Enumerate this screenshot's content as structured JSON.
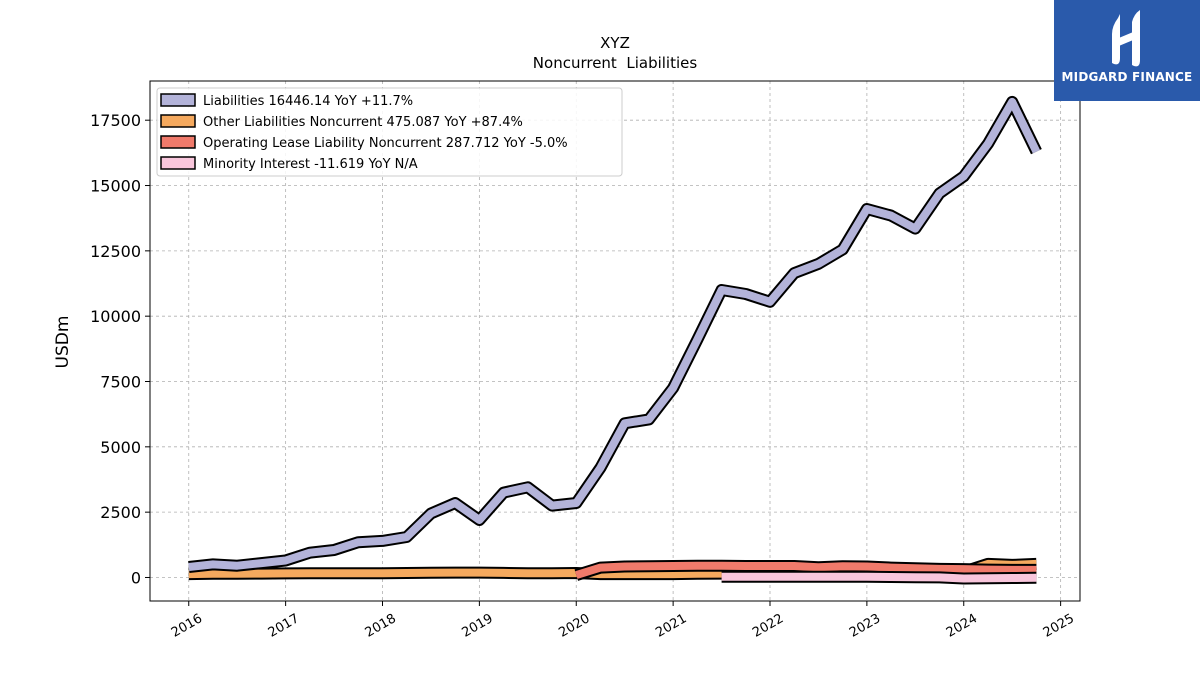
{
  "brand": {
    "name": "MIDGARD FINANCE",
    "color": "#2a5aab"
  },
  "chart_data": {
    "type": "area",
    "title": "XYZ",
    "subtitle": "Noncurrent  Liabilities",
    "ylabel": "USDm",
    "xlabel": "",
    "xlim": [
      2015.6,
      2025.2
    ],
    "ylim": [
      -900,
      19000
    ],
    "yticks": [
      0,
      2500,
      5000,
      7500,
      10000,
      12500,
      15000,
      17500
    ],
    "xticks": [
      "2016",
      "2017",
      "2018",
      "2019",
      "2020",
      "2021",
      "2022",
      "2023",
      "2024",
      "2025"
    ],
    "grid": true,
    "legend_position": "top-left",
    "x": [
      2016.0,
      2016.25,
      2016.5,
      2016.75,
      2017.0,
      2017.25,
      2017.5,
      2017.75,
      2018.0,
      2018.25,
      2018.5,
      2018.75,
      2019.0,
      2019.25,
      2019.5,
      2019.75,
      2020.0,
      2020.25,
      2020.5,
      2020.75,
      2021.0,
      2021.25,
      2021.5,
      2021.75,
      2022.0,
      2022.25,
      2022.5,
      2022.75,
      2023.0,
      2023.25,
      2023.5,
      2023.75,
      2024.0,
      2024.25,
      2024.5,
      2024.75
    ],
    "series": [
      {
        "name": "Liabilities",
        "legend": "Liabilities  16446.14 YoY +11.7%",
        "color": "#b3b3d9",
        "values": [
          400,
          500,
          450,
          550,
          650,
          950,
          1050,
          1350,
          1400,
          1550,
          2450,
          2850,
          2200,
          3250,
          3450,
          2750,
          2850,
          4200,
          5900,
          6050,
          7250,
          9100,
          11000,
          10850,
          10550,
          11650,
          12000,
          12550,
          14100,
          13850,
          13350,
          14700,
          15350,
          16600,
          18200,
          16300
        ]
      },
      {
        "name": "Other Liabilities Noncurrent",
        "legend": "Other Liabilities Noncurrent  475.087 YoY +87.4%",
        "color": "#f5a95e",
        "values": [
          130,
          140,
          140,
          150,
          155,
          160,
          160,
          165,
          165,
          170,
          180,
          185,
          185,
          175,
          165,
          165,
          170,
          130,
          130,
          130,
          130,
          140,
          150,
          150,
          155,
          160,
          165,
          170,
          170,
          170,
          200,
          210,
          220,
          520,
          480,
          520
        ]
      },
      {
        "name": "Operating Lease Liability Noncurrent",
        "legend": "Operating Lease Liability Noncurrent  287.712 YoY -5.0%",
        "color": "#f07a6b",
        "values": [
          null,
          null,
          null,
          null,
          null,
          null,
          null,
          null,
          null,
          null,
          null,
          null,
          null,
          null,
          null,
          null,
          90,
          380,
          420,
          430,
          440,
          450,
          450,
          440,
          440,
          440,
          390,
          430,
          420,
          380,
          350,
          330,
          320,
          300,
          290,
          290
        ]
      },
      {
        "name": "Minority Interest",
        "legend": "Minority Interest  -11.619 YoY N/A",
        "color": "#f9c6dc",
        "values": [
          null,
          null,
          null,
          null,
          null,
          null,
          null,
          null,
          null,
          null,
          null,
          null,
          null,
          null,
          null,
          null,
          null,
          null,
          null,
          null,
          null,
          null,
          30,
          30,
          30,
          30,
          30,
          30,
          30,
          20,
          10,
          5,
          -40,
          -30,
          -20,
          -12
        ]
      }
    ]
  }
}
